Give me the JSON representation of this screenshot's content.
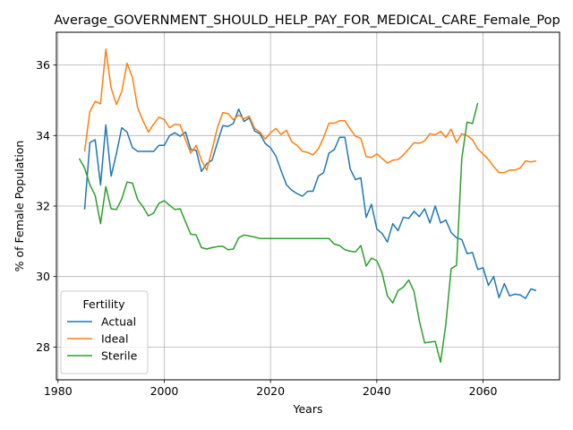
{
  "chart_data": {
    "type": "line",
    "title": "Average_GOVERNMENT_SHOULD_HELP_PAY_FOR_MEDICAL_CARE_Female_Pop",
    "xlabel": "Years",
    "ylabel": "% of Female Population",
    "xlim": [
      1979.7,
      2074.4
    ],
    "ylim": [
      27.07,
      36.93
    ],
    "xticks": [
      "1980",
      "2000",
      "2020",
      "2040",
      "2060"
    ],
    "yticks": [
      "28",
      "30",
      "32",
      "34",
      "36"
    ],
    "grid": true,
    "legend": {
      "title": "Fertility",
      "placement": "lower-left"
    },
    "colors": {
      "Actual": "#1f77b4",
      "Ideal": "#ff7f0e",
      "Sterile": "#2ca02c"
    },
    "series": [
      {
        "name": "Actual",
        "x": [
          1985,
          1986,
          1987,
          1988,
          1989,
          1990,
          1991,
          1992,
          1993,
          1994,
          1995,
          1996,
          1997,
          1998,
          1999,
          2000,
          2001,
          2002,
          2003,
          2004,
          2005,
          2006,
          2007,
          2008,
          2009,
          2010,
          2011,
          2012,
          2013,
          2014,
          2015,
          2016,
          2017,
          2018,
          2019,
          2020,
          2021,
          2022,
          2023,
          2024,
          2025,
          2026,
          2027,
          2028,
          2029,
          2030,
          2031,
          2032,
          2033,
          2034,
          2035,
          2036,
          2037,
          2038,
          2039,
          2040,
          2041,
          2042,
          2043,
          2044,
          2045,
          2046,
          2047,
          2048,
          2049,
          2050,
          2051,
          2052,
          2053,
          2054,
          2055,
          2056,
          2057,
          2058,
          2059,
          2060,
          2061,
          2062,
          2063,
          2064,
          2065,
          2066,
          2067,
          2068,
          2069,
          2070
        ],
        "y": [
          31.9,
          33.8,
          33.88,
          32.6,
          34.3,
          32.85,
          33.5,
          34.22,
          34.1,
          33.66,
          33.55,
          33.55,
          33.55,
          33.55,
          33.72,
          33.72,
          34.0,
          34.08,
          33.98,
          34.1,
          33.6,
          33.58,
          32.98,
          33.2,
          33.3,
          33.8,
          34.28,
          34.26,
          34.34,
          34.75,
          34.4,
          34.5,
          34.13,
          34.05,
          33.78,
          33.65,
          33.42,
          33.0,
          32.6,
          32.45,
          32.35,
          32.28,
          32.42,
          32.42,
          32.85,
          32.95,
          33.5,
          33.6,
          33.95,
          33.95,
          33.05,
          32.75,
          32.8,
          31.68,
          32.05,
          31.35,
          31.22,
          30.98,
          31.5,
          31.3,
          31.68,
          31.65,
          31.85,
          31.7,
          31.92,
          31.52,
          32.0,
          31.52,
          31.6,
          31.25,
          31.1,
          31.05,
          30.65,
          30.68,
          30.2,
          30.25,
          29.75,
          30.0,
          29.4,
          29.8,
          29.45,
          29.5,
          29.48,
          29.38,
          29.65,
          29.6
        ]
      },
      {
        "name": "Ideal",
        "x": [
          1985,
          1986,
          1987,
          1988,
          1989,
          1990,
          1991,
          1992,
          1993,
          1994,
          1995,
          1996,
          1997,
          1998,
          1999,
          2000,
          2001,
          2002,
          2003,
          2004,
          2005,
          2006,
          2007,
          2008,
          2009,
          2010,
          2011,
          2012,
          2013,
          2014,
          2015,
          2016,
          2017,
          2018,
          2019,
          2020,
          2021,
          2022,
          2023,
          2024,
          2025,
          2026,
          2027,
          2028,
          2029,
          2030,
          2031,
          2032,
          2033,
          2034,
          2035,
          2036,
          2037,
          2038,
          2039,
          2040,
          2041,
          2042,
          2043,
          2044,
          2045,
          2046,
          2047,
          2048,
          2049,
          2050,
          2051,
          2052,
          2053,
          2054,
          2055,
          2056,
          2057,
          2058,
          2059,
          2060,
          2061,
          2062,
          2063,
          2064,
          2065,
          2066,
          2067,
          2068,
          2069,
          2070
        ],
        "y": [
          33.55,
          34.68,
          34.97,
          34.9,
          36.45,
          35.35,
          34.88,
          35.25,
          36.05,
          35.65,
          34.78,
          34.42,
          34.1,
          34.32,
          34.52,
          34.45,
          34.22,
          34.32,
          34.3,
          33.88,
          33.5,
          33.72,
          33.3,
          33.02,
          33.6,
          34.22,
          34.65,
          34.62,
          34.45,
          34.58,
          34.48,
          34.55,
          34.2,
          34.1,
          33.9,
          34.08,
          34.2,
          34.03,
          34.15,
          33.82,
          33.72,
          33.55,
          33.52,
          33.45,
          33.62,
          33.95,
          34.35,
          34.35,
          34.42,
          34.42,
          34.18,
          33.98,
          33.92,
          33.4,
          33.38,
          33.48,
          33.35,
          33.22,
          33.3,
          33.32,
          33.45,
          33.62,
          33.8,
          33.78,
          33.85,
          34.05,
          34.02,
          34.12,
          33.95,
          34.18,
          33.8,
          34.05,
          34.0,
          33.88,
          33.62,
          33.48,
          33.32,
          33.12,
          32.95,
          32.95,
          33.02,
          33.02,
          33.08,
          33.28,
          33.25,
          33.28
        ]
      },
      {
        "name": "Sterile",
        "x": [
          1984,
          1985,
          1986,
          1987,
          1988,
          1989,
          1990,
          1991,
          1992,
          1993,
          1994,
          1995,
          1996,
          1997,
          1998,
          1999,
          2000,
          2001,
          2002,
          2003,
          2004,
          2005,
          2006,
          2007,
          2008,
          2009,
          2010,
          2011,
          2012,
          2013,
          2014,
          2015,
          2016,
          2017,
          2018,
          2019,
          2020,
          2021,
          2022,
          2023,
          2024,
          2025,
          2026,
          2027,
          2028,
          2029,
          2030,
          2031,
          2032,
          2033,
          2034,
          2035,
          2036,
          2037,
          2038,
          2039,
          2040,
          2041,
          2042,
          2043,
          2044,
          2045,
          2046,
          2047,
          2048,
          2049,
          2050,
          2051,
          2052,
          2053,
          2054,
          2055,
          2056,
          2057,
          2058,
          2059
        ],
        "y": [
          33.35,
          33.08,
          32.6,
          32.3,
          31.5,
          32.55,
          31.92,
          31.9,
          32.2,
          32.68,
          32.65,
          32.18,
          31.98,
          31.72,
          31.8,
          32.08,
          32.15,
          32.02,
          31.9,
          31.92,
          31.55,
          31.2,
          31.18,
          30.82,
          30.78,
          30.82,
          30.85,
          30.86,
          30.76,
          30.78,
          31.1,
          31.18,
          31.15,
          31.12,
          31.08,
          31.08,
          31.08,
          31.08,
          31.08,
          31.08,
          31.08,
          31.08,
          31.08,
          31.08,
          31.08,
          31.08,
          31.08,
          31.08,
          30.92,
          30.88,
          30.76,
          30.72,
          30.7,
          30.88,
          30.3,
          30.52,
          30.45,
          30.1,
          29.45,
          29.25,
          29.6,
          29.7,
          29.9,
          29.58,
          28.75,
          28.12,
          28.14,
          28.16,
          27.57,
          28.65,
          30.22,
          30.32,
          33.35,
          34.38,
          34.34,
          34.92
        ]
      }
    ]
  }
}
